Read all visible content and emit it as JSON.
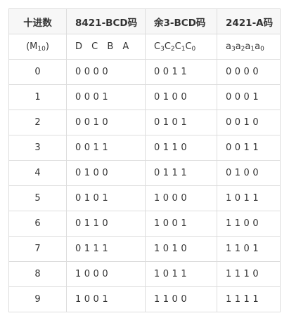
{
  "table": {
    "headers": [
      "十进数",
      "8421-BCD码",
      "余3-BCD码",
      "2421-A码"
    ],
    "bit_row": {
      "decimal": {
        "base": "(M",
        "sub": "10",
        "tail": ")"
      },
      "bcd8421": "D C B A",
      "excess3": [
        {
          "base": "C",
          "sub": "3"
        },
        {
          "base": "C",
          "sub": "2"
        },
        {
          "base": "C",
          "sub": "1"
        },
        {
          "base": "C",
          "sub": "0"
        }
      ],
      "a2421": [
        {
          "base": "a",
          "sub": "3"
        },
        {
          "base": "a",
          "sub": "2"
        },
        {
          "base": "a",
          "sub": "1"
        },
        {
          "base": "a",
          "sub": "0"
        }
      ]
    },
    "rows": [
      {
        "decimal": "0",
        "bcd8421": "0000",
        "excess3": "0011",
        "a2421": "0000"
      },
      {
        "decimal": "1",
        "bcd8421": "0001",
        "excess3": "0100",
        "a2421": "0001"
      },
      {
        "decimal": "2",
        "bcd8421": "0010",
        "excess3": "0101",
        "a2421": "0010"
      },
      {
        "decimal": "3",
        "bcd8421": "0011",
        "excess3": "0110",
        "a2421": "0011"
      },
      {
        "decimal": "4",
        "bcd8421": "0100",
        "excess3": "0111",
        "a2421": "0100"
      },
      {
        "decimal": "5",
        "bcd8421": "0101",
        "excess3": "1000",
        "a2421": "1011"
      },
      {
        "decimal": "6",
        "bcd8421": "0110",
        "excess3": "1001",
        "a2421": "1100"
      },
      {
        "decimal": "7",
        "bcd8421": "0111",
        "excess3": "1010",
        "a2421": "1101"
      },
      {
        "decimal": "8",
        "bcd8421": "1000",
        "excess3": "1011",
        "a2421": "1110"
      },
      {
        "decimal": "9",
        "bcd8421": "1001",
        "excess3": "1100",
        "a2421": "1111"
      }
    ]
  }
}
